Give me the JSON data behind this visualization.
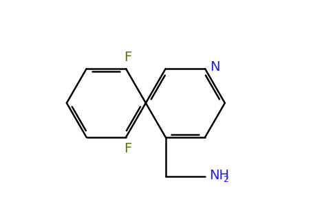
{
  "background_color": "#ffffff",
  "bond_color": "#000000",
  "N_color": "#1919ff",
  "F_color": "#4f7a00",
  "figsize": [
    4.84,
    3.0
  ],
  "dpi": 100,
  "bond_lw": 1.8,
  "font_size_atom": 14,
  "font_size_subscript": 9,
  "xlim": [
    -2.6,
    3.2
  ],
  "ylim": [
    -2.0,
    2.2
  ]
}
